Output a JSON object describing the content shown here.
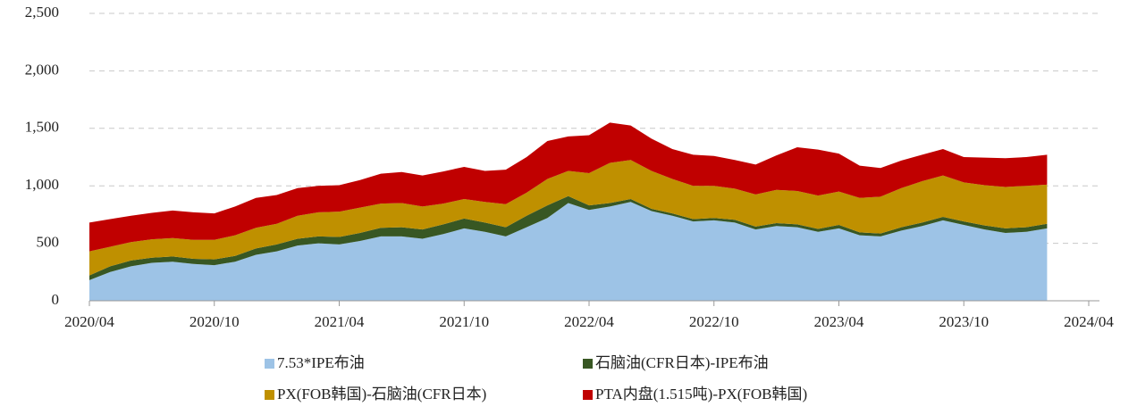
{
  "chart_data": {
    "type": "stacked_area",
    "x": [
      "2020/04",
      "2020/05",
      "2020/06",
      "2020/07",
      "2020/08",
      "2020/09",
      "2020/10",
      "2020/11",
      "2020/12",
      "2021/01",
      "2021/02",
      "2021/03",
      "2021/04",
      "2021/05",
      "2021/06",
      "2021/07",
      "2021/08",
      "2021/09",
      "2021/10",
      "2021/11",
      "2021/12",
      "2022/01",
      "2022/02",
      "2022/03",
      "2022/04",
      "2022/05",
      "2022/06",
      "2022/07",
      "2022/08",
      "2022/09",
      "2022/10",
      "2022/11",
      "2022/12",
      "2023/01",
      "2023/02",
      "2023/03",
      "2023/04",
      "2023/05",
      "2023/06",
      "2023/07",
      "2023/08",
      "2023/09",
      "2023/10",
      "2023/11",
      "2023/12",
      "2024/01",
      "2024/02"
    ],
    "series": [
      {
        "name": "7.53*IPE布油",
        "color": "#9dc3e6",
        "values": [
          180,
          250,
          300,
          330,
          340,
          320,
          310,
          340,
          400,
          430,
          480,
          500,
          490,
          520,
          560,
          560,
          540,
          580,
          630,
          600,
          560,
          640,
          720,
          850,
          790,
          820,
          860,
          780,
          740,
          690,
          700,
          680,
          620,
          650,
          640,
          600,
          630,
          570,
          560,
          610,
          650,
          700,
          660,
          620,
          590,
          600,
          630
        ]
      },
      {
        "name": "石脑油(CFR日本)-IPE布油",
        "color": "#385723",
        "values": [
          40,
          50,
          50,
          45,
          45,
          45,
          50,
          50,
          55,
          60,
          60,
          60,
          65,
          70,
          75,
          80,
          80,
          85,
          85,
          80,
          80,
          100,
          110,
          60,
          40,
          30,
          25,
          20,
          20,
          20,
          20,
          25,
          25,
          25,
          25,
          25,
          30,
          25,
          25,
          30,
          30,
          30,
          30,
          35,
          40,
          40,
          40
        ]
      },
      {
        "name": "PX(FOB韩国)-石脑油(CFR日本)",
        "color": "#bf9000",
        "values": [
          210,
          170,
          160,
          160,
          160,
          165,
          170,
          180,
          180,
          180,
          200,
          210,
          220,
          220,
          210,
          210,
          200,
          180,
          170,
          180,
          200,
          200,
          230,
          220,
          280,
          350,
          340,
          330,
          300,
          290,
          280,
          270,
          280,
          290,
          290,
          290,
          290,
          300,
          320,
          340,
          360,
          360,
          340,
          350,
          360,
          360,
          340
        ]
      },
      {
        "name": "PTA内盘(1.515吨)-PX(FOB韩国)",
        "color": "#c00000",
        "values": [
          250,
          240,
          230,
          230,
          240,
          240,
          230,
          250,
          260,
          250,
          240,
          230,
          230,
          240,
          260,
          270,
          270,
          280,
          280,
          270,
          300,
          310,
          330,
          300,
          330,
          350,
          300,
          280,
          260,
          270,
          260,
          250,
          260,
          300,
          380,
          400,
          330,
          280,
          250,
          240,
          230,
          230,
          220,
          240,
          250,
          250,
          260
        ]
      }
    ],
    "xlim": [
      "2020/04",
      "2024/04"
    ],
    "xticks": [
      "2020/04",
      "2020/10",
      "2021/04",
      "2021/10",
      "2022/04",
      "2022/10",
      "2023/04",
      "2023/10",
      "2024/04"
    ],
    "ylim": [
      0,
      2500
    ],
    "yticks": [
      0,
      500,
      {
        "value": 1000,
        "label": "1,000"
      },
      {
        "value": 1500,
        "label": "1,500"
      },
      {
        "value": 2000,
        "label": "2,000"
      },
      {
        "value": 2500,
        "label": "2,500"
      }
    ],
    "grid": true,
    "legend": "bottom"
  }
}
